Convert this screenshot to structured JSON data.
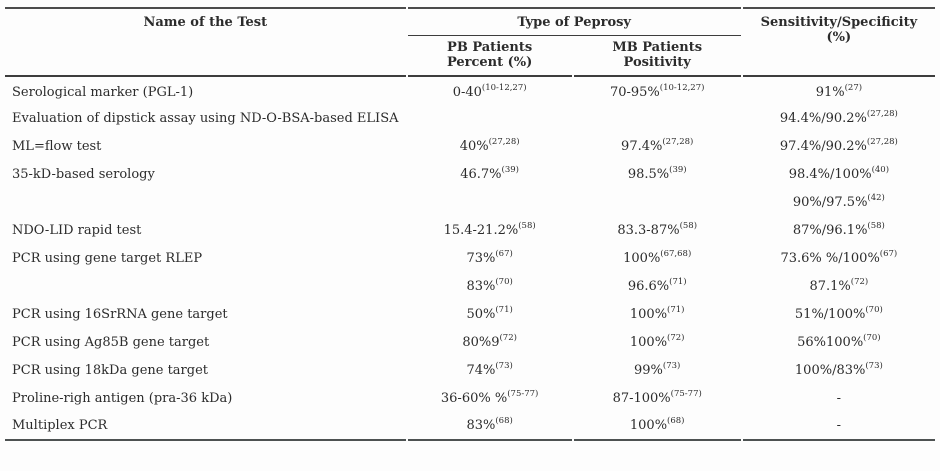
{
  "table": {
    "headers": {
      "name": "Name of the Test",
      "group": "Type of Peprosy",
      "pb_line1": "PB Patients",
      "pb_line2": "Percent (%)",
      "mb_line1": "MB Patients",
      "mb_line2": "Positivity",
      "sens_line1": "Sensitivity/Specificity",
      "sens_line2": "(%)"
    },
    "rows": [
      {
        "name": "Serological marker (PGL-1)",
        "pb": "0-40",
        "pb_sup": "(10-12,27)",
        "mb": "70-95%",
        "mb_sup": "(10-12,27)",
        "sens": "91%",
        "sens_sup": "(27)"
      },
      {
        "name": "Evaluation of dipstick assay using ND-O-BSA-based ELISA",
        "pb": "",
        "pb_sup": "",
        "mb": "",
        "mb_sup": "",
        "sens": "94.4%/90.2%",
        "sens_sup": "(27,28)"
      },
      {
        "name": "ML=flow test",
        "pb": "40%",
        "pb_sup": "(27,28)",
        "mb": "97.4%",
        "mb_sup": "(27,28)",
        "sens": "97.4%/90.2%",
        "sens_sup": "(27,28)"
      },
      {
        "name": "35-kD-based serology",
        "pb": "46.7%",
        "pb_sup": "(39)",
        "mb": "98.5%",
        "mb_sup": "(39)",
        "sens": "98.4%/100%",
        "sens_sup": "(40)"
      },
      {
        "name": "",
        "pb": "",
        "pb_sup": "",
        "mb": "",
        "mb_sup": "",
        "sens": "90%/97.5%",
        "sens_sup": "(42)"
      },
      {
        "name": "NDO-LID rapid test",
        "pb": "15.4-21.2%",
        "pb_sup": "(58)",
        "mb": "83.3-87%",
        "mb_sup": "(58)",
        "sens": "87%/96.1%",
        "sens_sup": "(58)"
      },
      {
        "name": "PCR using gene target RLEP",
        "pb": "73%",
        "pb_sup": "(67)",
        "mb": "100%",
        "mb_sup": "(67,68)",
        "sens": "73.6% %/100%",
        "sens_sup": "(67)"
      },
      {
        "name": "",
        "pb": "83%",
        "pb_sup": "(70)",
        "mb": "96.6%",
        "mb_sup": "(71)",
        "sens": "87.1%",
        "sens_sup": "(72)"
      },
      {
        "name": "PCR using 16SrRNA gene target",
        "pb": "50%",
        "pb_sup": "(71)",
        "mb": "100%",
        "mb_sup": "(71)",
        "sens": "51%/100%",
        "sens_sup": "(70)"
      },
      {
        "name": "PCR using Ag85B gene target",
        "pb": "80%9",
        "pb_sup": "(72)",
        "mb": "100%",
        "mb_sup": "(72)",
        "sens": "56%100%",
        "sens_sup": "(70)"
      },
      {
        "name": "PCR using 18kDa gene target",
        "pb": "74%",
        "pb_sup": "(73)",
        "mb": "99%",
        "mb_sup": "(73)",
        "sens": "100%/83%",
        "sens_sup": "(73)"
      },
      {
        "name": "Proline-righ antigen (pra-36 kDa)",
        "pb": "36-60% %",
        "pb_sup": "(75-77)",
        "mb": "87-100%",
        "mb_sup": "(75-77)",
        "sens": "-",
        "sens_sup": ""
      },
      {
        "name": "Multiplex PCR",
        "pb": "83%",
        "pb_sup": "(68)",
        "mb": "100%",
        "mb_sup": "(68)",
        "sens": "-",
        "sens_sup": ""
      }
    ]
  }
}
